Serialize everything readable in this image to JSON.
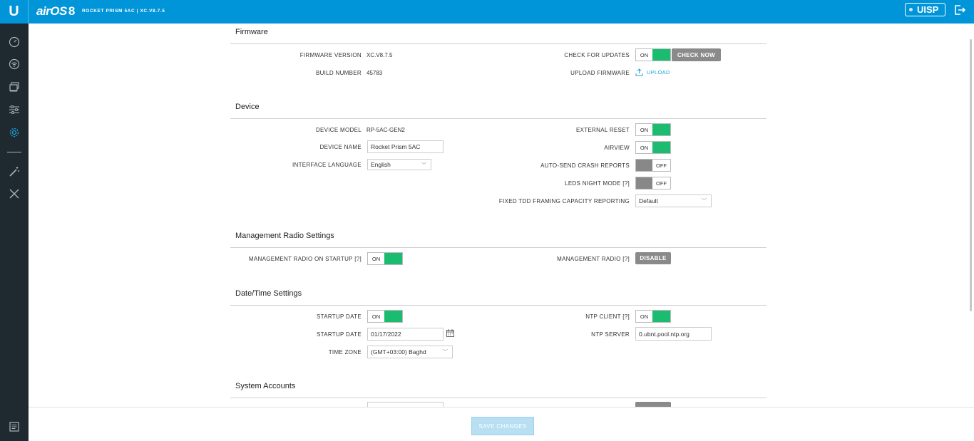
{
  "header": {
    "logo": "U",
    "product": "airOS",
    "product_version": "8",
    "device_title": "ROCKET PRISM 5AC | XC.V8.7.5",
    "uisp_label": "UISP",
    "logout_icon": "logout-icon"
  },
  "sidebar": {
    "items": [
      {
        "name": "dashboard",
        "icon": "speedometer-icon"
      },
      {
        "name": "wireless",
        "icon": "wifi-icon"
      },
      {
        "name": "network",
        "icon": "network-icon"
      },
      {
        "name": "services",
        "icon": "sliders-icon"
      },
      {
        "name": "system",
        "icon": "gear-icon",
        "active": true
      },
      {
        "name": "tools",
        "icon": "wand-icon"
      },
      {
        "name": "utilities",
        "icon": "wrench-icon"
      }
    ]
  },
  "firmware": {
    "title": "Firmware",
    "firmware_version_label": "FIRMWARE VERSION",
    "firmware_version": "XC.V8.7.5",
    "build_number_label": "BUILD NUMBER",
    "build_number": "45783",
    "check_updates_label": "CHECK FOR UPDATES",
    "check_updates_state": "ON",
    "check_now_label": "CHECK NOW",
    "upload_firmware_label": "UPLOAD FIRMWARE",
    "upload_label": "UPLOAD"
  },
  "device": {
    "title": "Device",
    "model_label": "DEVICE MODEL",
    "model": "RP-5AC-GEN2",
    "name_label": "DEVICE NAME",
    "name": "Rocket Prism 5AC",
    "language_label": "INTERFACE LANGUAGE",
    "language": "English",
    "external_reset_label": "EXTERNAL RESET",
    "external_reset_state": "ON",
    "airview_label": "AIRVIEW",
    "airview_state": "ON",
    "crash_reports_label": "AUTO-SEND CRASH REPORTS",
    "crash_reports_state": "OFF",
    "leds_night_label": "LEDS NIGHT MODE [?]",
    "leds_night_state": "OFF",
    "tdd_label": "FIXED TDD FRAMING CAPACITY REPORTING",
    "tdd_value": "Default"
  },
  "management_radio": {
    "title": "Management Radio Settings",
    "startup_label": "MANAGEMENT RADIO ON STARTUP [?]",
    "startup_state": "ON",
    "radio_label": "MANAGEMENT RADIO [?]",
    "radio_button": "DISABLE"
  },
  "datetime": {
    "title": "Date/Time Settings",
    "startup_date_toggle_label": "STARTUP DATE",
    "startup_date_toggle_state": "ON",
    "startup_date_label": "STARTUP DATE",
    "startup_date": "01/17/2022",
    "timezone_label": "TIME ZONE",
    "timezone": "(GMT+03:00) Baghd",
    "ntp_client_label": "NTP CLIENT [?]",
    "ntp_client_state": "ON",
    "ntp_server_label": "NTP SERVER",
    "ntp_server": "0.ubnt.pool.ntp.org"
  },
  "system_accounts": {
    "title": "System Accounts"
  },
  "footer": {
    "save_label": "SAVE CHANGES"
  }
}
